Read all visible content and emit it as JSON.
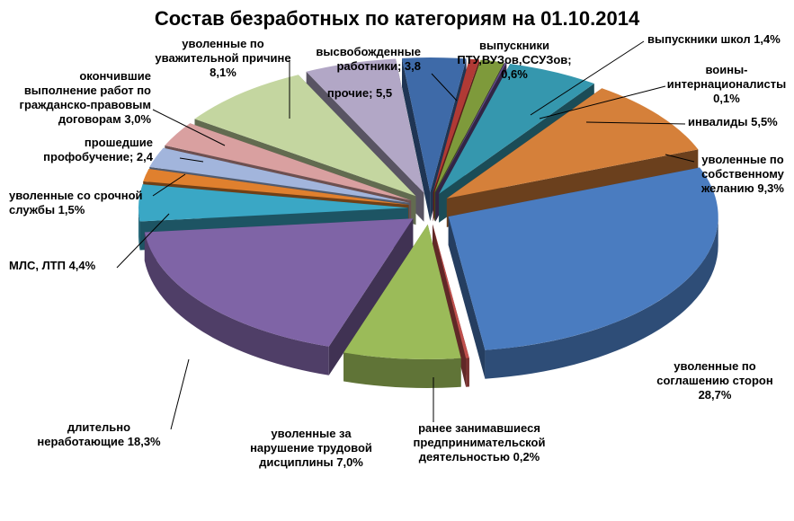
{
  "chart_data": {
    "type": "pie",
    "title": "Состав безработных по категориям на 01.10.2014",
    "style": "exploded 3D pie",
    "slices": [
      {
        "name": "высвобожденные работники",
        "value": 3.8,
        "label": [
          "высвобожденные",
          "работники; 3,8"
        ],
        "color": "#3E6AA8"
      },
      {
        "name": "выпускники ПТУ,ВУЗов,ССУЗов",
        "value": 0.6,
        "label": [
          "выпускники",
          "ПТУ,ВУЗов,ССУЗов;",
          "0,6%"
        ],
        "color": "#B03A35"
      },
      {
        "name": "выпускники школ",
        "value": 1.4,
        "label": [
          "выпускники школ 1,4%"
        ],
        "color": "#7E9A3B"
      },
      {
        "name": "воины-интернационалисты",
        "value": 0.1,
        "label": [
          "воины-",
          "интернационалисты",
          "0,1%"
        ],
        "color": "#634A8A"
      },
      {
        "name": "инвалиды",
        "value": 5.5,
        "label": [
          "инвалиды 5,5%"
        ],
        "color": "#3597AE"
      },
      {
        "name": "уволенные по собственному желанию",
        "value": 9.3,
        "label": [
          "уволенные по",
          "собственному",
          "желанию 9,3%"
        ],
        "color": "#D5803A"
      },
      {
        "name": "уволенные по соглашению сторон",
        "value": 28.7,
        "label": [
          "уволенные по",
          "соглашению сторон",
          "28,7%"
        ],
        "color": "#4A7CC0"
      },
      {
        "name": "ранее занимавшиеся предпринимательской деятельностью",
        "value": 0.2,
        "label": [
          "ранее занимавшиеся",
          "предпринимательской",
          "деятельностью 0,2%"
        ],
        "color": "#C0504D"
      },
      {
        "name": "уволенные за нарушение трудовой дисциплины",
        "value": 7.0,
        "label": [
          "уволенные за",
          "нарушение трудовой",
          "дисциплины 7,0%"
        ],
        "color": "#9BBB59"
      },
      {
        "name": "длительно неработающие",
        "value": 18.3,
        "label": [
          "длительно",
          "неработающие 18,3%"
        ],
        "color": "#7F64A6"
      },
      {
        "name": "МЛС, ЛТП",
        "value": 4.4,
        "label": [
          "МЛС, ЛТП 4,4%"
        ],
        "color": "#3AA7C5"
      },
      {
        "name": "уволенные со срочной службы",
        "value": 1.5,
        "label": [
          "уволенные со срочной",
          "службы 1,5%"
        ],
        "color": "#E0802E"
      },
      {
        "name": "прошедшие профобучение",
        "value": 2.4,
        "label": [
          "прошедшие",
          "профобучение; 2,4"
        ],
        "color": "#A2B5DC"
      },
      {
        "name": "окончившие выполнение работ по гражданско-правовым договорам",
        "value": 3.0,
        "label": [
          "окончившие",
          "выполнение работ по",
          "гражданско-правовым",
          "договорам 3,0%"
        ],
        "color": "#D9A0A0"
      },
      {
        "name": "уволенные по уважительной причине",
        "value": 8.1,
        "label": [
          "уволенные по",
          "уважительной причине",
          "8,1%"
        ],
        "color": "#C4D6A0"
      },
      {
        "name": "прочие",
        "value": 5.5,
        "label": [
          "прочие; 5,5"
        ],
        "color": "#B2A7C6"
      }
    ]
  }
}
